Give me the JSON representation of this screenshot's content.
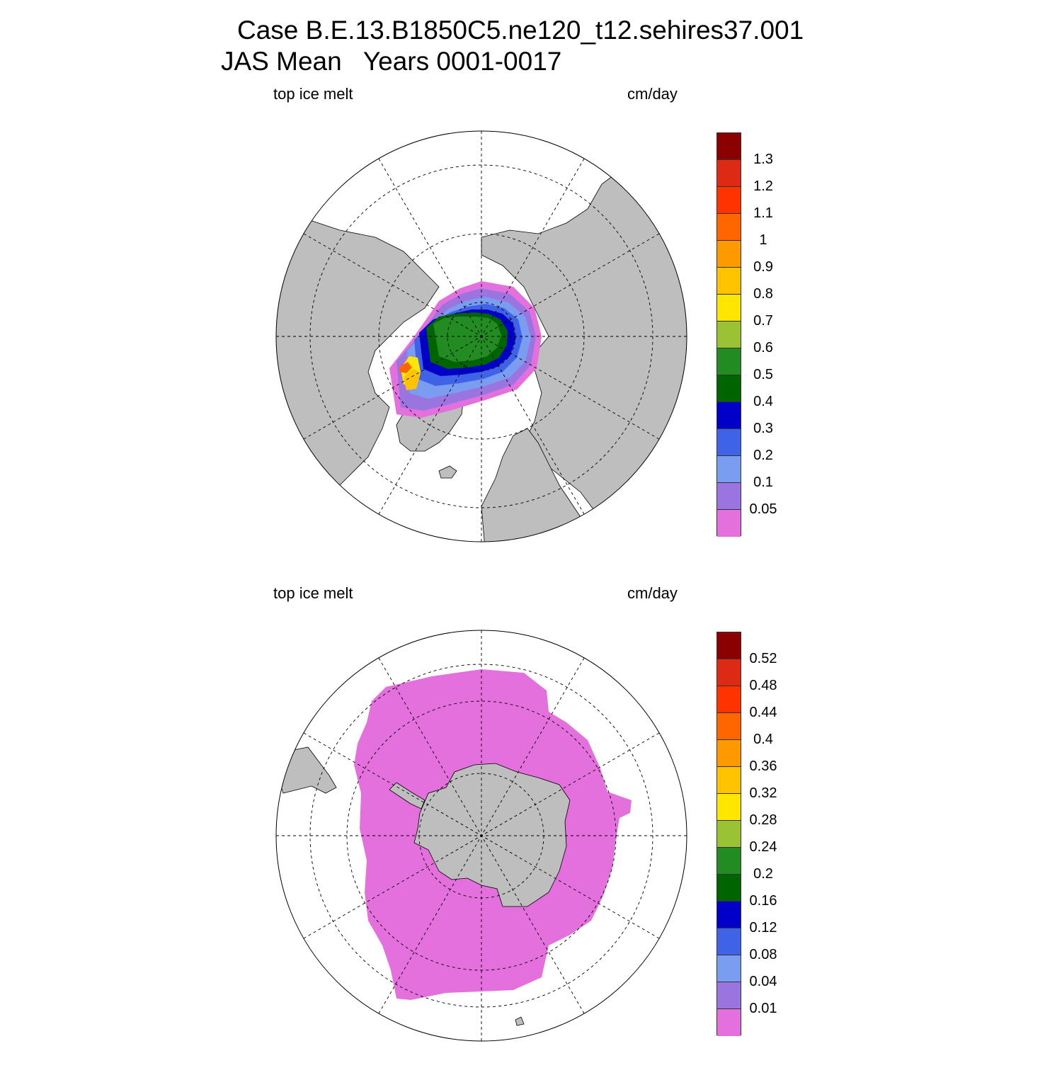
{
  "title": {
    "line1": "Case B.E.13.B1850C5.ne120_t12.sehires37.001",
    "line2": "JAS Mean   Years 0001-0017"
  },
  "colors": {
    "land": "#bebebe",
    "ocean": "#ffffff",
    "palette": [
      "#e370dc",
      "#9a75e0",
      "#7a9df2",
      "#3e63e6",
      "#0000c8",
      "#006400",
      "#228b22",
      "#9bc134",
      "#ffe600",
      "#ffc300",
      "#ff9900",
      "#ff6600",
      "#ff3300",
      "#dd2a15",
      "#8b0000"
    ]
  },
  "panels": [
    {
      "id": "north",
      "hemisphere": "Northern",
      "variable_label": "top ice melt",
      "units": "cm/day",
      "colorbar_levels": [
        "0.05",
        "0.1",
        "0.2",
        "0.3",
        "0.4",
        "0.5",
        "0.6",
        "0.7",
        "0.8",
        "0.9",
        "1",
        "1.1",
        "1.2",
        "1.3"
      ]
    },
    {
      "id": "south",
      "hemisphere": "Southern",
      "variable_label": "top ice melt",
      "units": "cm/day",
      "colorbar_levels": [
        "0.01",
        "0.04",
        "0.08",
        "0.12",
        "0.16",
        "0.2",
        "0.24",
        "0.28",
        "0.32",
        "0.36",
        "0.4",
        "0.44",
        "0.48",
        "0.52"
      ]
    }
  ]
}
